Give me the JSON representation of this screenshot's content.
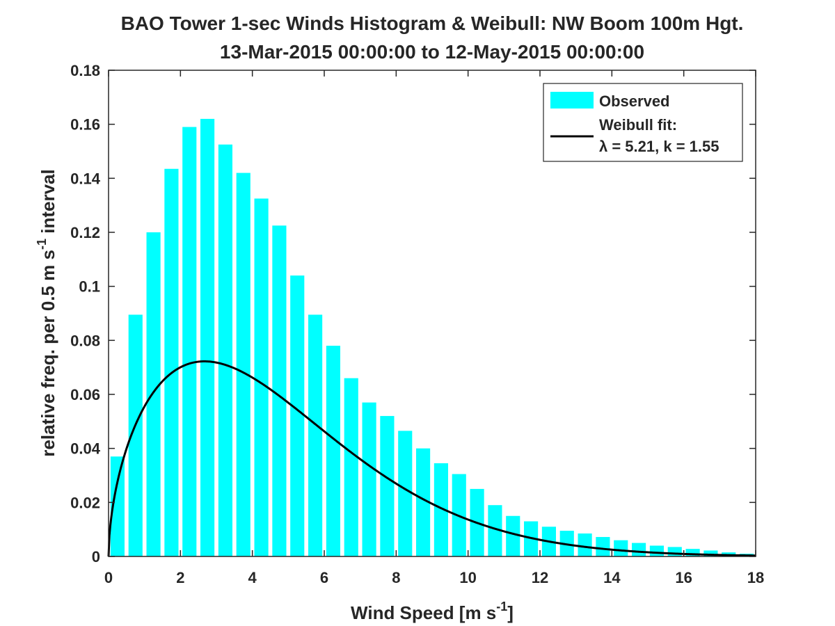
{
  "chart_data": {
    "type": "bar",
    "title": "BAO Tower 1-sec Winds Histogram & Weibull: NW Boom 100m Hgt.",
    "subtitle": "13-Mar-2015 00:00:00 to 12-May-2015 00:00:00",
    "xlabel_main": "Wind Speed [m s",
    "xlabel_sup": "-1",
    "xlabel_end": "]",
    "ylabel_main": "relative freq. per 0.5 m s",
    "ylabel_sup": "-1",
    "ylabel_end": " interval",
    "xlim": [
      0,
      18
    ],
    "ylim": [
      0,
      0.18
    ],
    "xticks": [
      0,
      2,
      4,
      6,
      8,
      10,
      12,
      14,
      16,
      18
    ],
    "xtick_labels": [
      "0",
      "2",
      "4",
      "6",
      "8",
      "10",
      "12",
      "14",
      "16",
      "18"
    ],
    "yticks": [
      0,
      0.02,
      0.04,
      0.06,
      0.08,
      0.1,
      0.12,
      0.14,
      0.16,
      0.18
    ],
    "ytick_labels": [
      "0",
      "0.02",
      "0.04",
      "0.06",
      "0.08",
      "0.1",
      "0.12",
      "0.14",
      "0.16",
      "0.18"
    ],
    "bin_width": 0.5,
    "bar_color": "#00FFFF",
    "line_color": "#000000",
    "series": [
      {
        "name": "Observed",
        "kind": "bar",
        "x": [
          0.25,
          0.75,
          1.25,
          1.75,
          2.25,
          2.75,
          3.25,
          3.75,
          4.25,
          4.75,
          5.25,
          5.75,
          6.25,
          6.75,
          7.25,
          7.75,
          8.25,
          8.75,
          9.25,
          9.75,
          10.25,
          10.75,
          11.25,
          11.75,
          12.25,
          12.75,
          13.25,
          13.75,
          14.25,
          14.75,
          15.25,
          15.75,
          16.25,
          16.75,
          17.25,
          17.75
        ],
        "values": [
          0.037,
          0.0895,
          0.12,
          0.1435,
          0.159,
          0.162,
          0.1525,
          0.142,
          0.1325,
          0.1225,
          0.104,
          0.0895,
          0.078,
          0.066,
          0.057,
          0.052,
          0.0465,
          0.04,
          0.0345,
          0.0305,
          0.025,
          0.019,
          0.015,
          0.013,
          0.011,
          0.0095,
          0.0085,
          0.0072,
          0.006,
          0.005,
          0.004,
          0.0035,
          0.0028,
          0.0022,
          0.0015,
          0.001
        ]
      },
      {
        "name": "Weibull fit:",
        "name_line2": "λ = 5.21, k = 1.55",
        "kind": "line",
        "lambda": 5.21,
        "k": 1.55
      }
    ],
    "legend_position": "top-right",
    "grid": false
  }
}
